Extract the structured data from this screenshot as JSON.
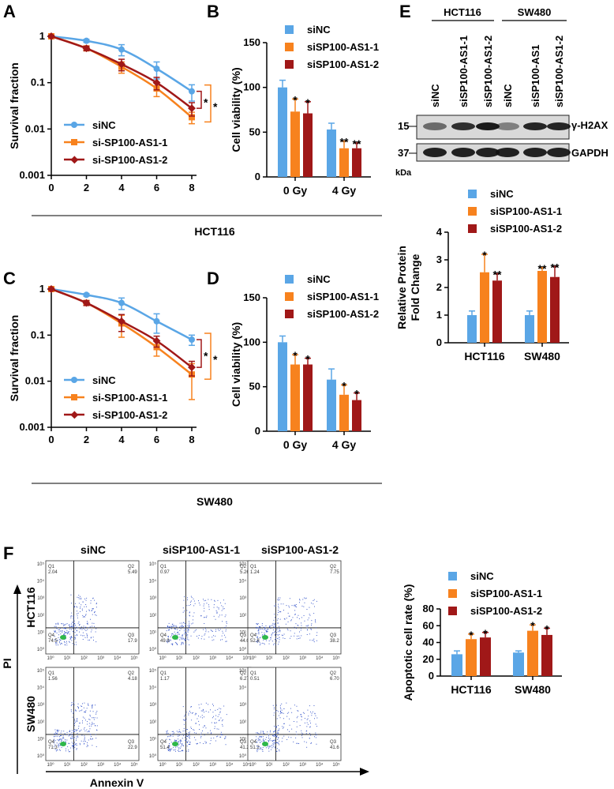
{
  "panel_letters": [
    "A",
    "B",
    "C",
    "D",
    "E",
    "F"
  ],
  "group_captions": {
    "A_B": "HCT116",
    "C_D": "SW480"
  },
  "colors": {
    "siNC": "#5aa6e6",
    "si1": "#f7821e",
    "si2": "#a01818"
  },
  "chart_data": [
    {
      "panel": "A",
      "type": "line",
      "title": "",
      "ylabel": "Survival fraction",
      "xlabel": "",
      "x": [
        0,
        2,
        4,
        6,
        8
      ],
      "xticks": [
        "0",
        "2",
        "4",
        "6",
        "8"
      ],
      "yticks": [
        "1",
        "0.1",
        "0.01",
        "0.001"
      ],
      "ylim": [
        0.001,
        1
      ],
      "yscale": "log",
      "series": [
        {
          "name": "siNC",
          "values": [
            1,
            0.8,
            0.52,
            0.2,
            0.065
          ],
          "err": [
            0.05,
            0.06,
            0.14,
            0.08,
            0.025
          ]
        },
        {
          "name": "si-SP100-AS1-1",
          "values": [
            1,
            0.55,
            0.22,
            0.075,
            0.018
          ],
          "err": [
            0.05,
            0.06,
            0.06,
            0.025,
            0.005
          ]
        },
        {
          "name": "si-SP100-AS1-2",
          "values": [
            1,
            0.55,
            0.25,
            0.1,
            0.028
          ],
          "err": [
            0.05,
            0.06,
            0.07,
            0.03,
            0.009
          ]
        }
      ],
      "sig": [
        "*",
        "*"
      ]
    },
    {
      "panel": "B",
      "type": "bar",
      "ylabel": "Cell viability (%)",
      "categories": [
        "0 Gy",
        "4 Gy"
      ],
      "yticks": [
        "0",
        "50",
        "100",
        "150"
      ],
      "ylim": [
        0,
        150
      ],
      "series": [
        {
          "name": "siNC",
          "values": [
            100,
            53
          ],
          "err": [
            8,
            7
          ],
          "sig": [
            "",
            ""
          ]
        },
        {
          "name": "siSP100-AS1-1",
          "values": [
            73,
            32
          ],
          "err": [
            14,
            8
          ],
          "sig": [
            "*",
            "**"
          ]
        },
        {
          "name": "siSP100-AS1-2",
          "values": [
            71,
            32
          ],
          "err": [
            13,
            6
          ],
          "sig": [
            "*",
            "**"
          ]
        }
      ]
    },
    {
      "panel": "C",
      "type": "line",
      "ylabel": "Survival fraction",
      "x": [
        0,
        2,
        4,
        6,
        8
      ],
      "xticks": [
        "0",
        "2",
        "4",
        "6",
        "8"
      ],
      "yticks": [
        "1",
        "0.1",
        "0.01",
        "0.001"
      ],
      "ylim": [
        0.001,
        1
      ],
      "yscale": "log",
      "series": [
        {
          "name": "siNC",
          "values": [
            1,
            0.75,
            0.5,
            0.2,
            0.08
          ],
          "err": [
            0.05,
            0.05,
            0.14,
            0.09,
            0.02
          ]
        },
        {
          "name": "si-SP100-AS1-1",
          "values": [
            1,
            0.5,
            0.18,
            0.055,
            0.014
          ],
          "err": [
            0.05,
            0.06,
            0.09,
            0.02,
            0.01
          ]
        },
        {
          "name": "si-SP100-AS1-2",
          "values": [
            1,
            0.5,
            0.2,
            0.075,
            0.02
          ],
          "err": [
            0.05,
            0.06,
            0.08,
            0.02,
            0.007
          ]
        }
      ],
      "sig": [
        "*",
        "*"
      ]
    },
    {
      "panel": "D",
      "type": "bar",
      "ylabel": "Cell viability (%)",
      "categories": [
        "0 Gy",
        "4 Gy"
      ],
      "yticks": [
        "0",
        "50",
        "100",
        "150"
      ],
      "ylim": [
        0,
        150
      ],
      "series": [
        {
          "name": "siNC",
          "values": [
            100,
            58
          ],
          "err": [
            7,
            12
          ],
          "sig": [
            "",
            ""
          ]
        },
        {
          "name": "siSP100-AS1-1",
          "values": [
            75,
            41
          ],
          "err": [
            11,
            11
          ],
          "sig": [
            "*",
            "*"
          ]
        },
        {
          "name": "siSP100-AS1-2",
          "values": [
            75,
            35
          ],
          "err": [
            7,
            8
          ],
          "sig": [
            "*",
            "*"
          ]
        }
      ]
    },
    {
      "panel": "E",
      "type": "bar",
      "ylabel": "Relative Protein Fold Change",
      "categories": [
        "HCT116",
        "SW480"
      ],
      "yticks": [
        "0",
        "1",
        "2",
        "3",
        "4"
      ],
      "ylim": [
        0,
        4
      ],
      "series": [
        {
          "name": "siNC",
          "values": [
            1.0,
            1.0
          ],
          "err": [
            0.15,
            0.15
          ],
          "sig": [
            "",
            ""
          ]
        },
        {
          "name": "siSP100-AS1-1",
          "values": [
            2.55,
            2.6
          ],
          "err": [
            0.65,
            0.12
          ],
          "sig": [
            "*",
            "**"
          ]
        },
        {
          "name": "siSP100-AS1-2",
          "values": [
            2.25,
            2.38
          ],
          "err": [
            0.25,
            0.38
          ],
          "sig": [
            "**",
            "**"
          ]
        }
      ]
    },
    {
      "panel": "F",
      "type": "bar",
      "ylabel": "Apoptotic cell rate (%)",
      "categories": [
        "HCT116",
        "SW480"
      ],
      "yticks": [
        "0",
        "20",
        "40",
        "60",
        "80"
      ],
      "ylim": [
        0,
        80
      ],
      "series": [
        {
          "name": "siNC",
          "values": [
            26,
            28
          ],
          "err": [
            4,
            2
          ],
          "sig": [
            "",
            ""
          ]
        },
        {
          "name": "siSP100-AS1-1",
          "values": [
            44,
            54
          ],
          "err": [
            6,
            7
          ],
          "sig": [
            "*",
            "*"
          ]
        },
        {
          "name": "siSP100-AS1-2",
          "values": [
            46,
            49
          ],
          "err": [
            6,
            8
          ],
          "sig": [
            "*",
            "*"
          ]
        }
      ]
    }
  ],
  "western": {
    "cell_lines": [
      "HCT116",
      "SW480"
    ],
    "lanes": [
      "siNC",
      "siSP100-AS1-1",
      "siSP100-AS1-2",
      "siNC",
      "siSP100-AS1",
      "siSP100-AS1-2"
    ],
    "bands": [
      {
        "name": "γ-H2AX",
        "mw": "15"
      },
      {
        "name": "GAPDH",
        "mw": "37"
      }
    ],
    "unit": "kDa"
  },
  "flow": {
    "columns": [
      "siNC",
      "siSP100-AS1-1",
      "siSP100-AS1-2"
    ],
    "rows": [
      "HCT116",
      "SW480"
    ],
    "ylabel": "PI",
    "xlabel": "Annexin V",
    "quadrants": [
      [
        [
          "2.04",
          "5.49",
          "17.9",
          "74.5"
        ],
        [
          "0.97",
          "5.26",
          "44.0",
          "49.9"
        ],
        [
          "1.24",
          "7.75",
          "38.2",
          "52.8"
        ]
      ],
      [
        [
          "1.56",
          "4.18",
          "22.9",
          "71.3"
        ],
        [
          "1.17",
          "6.27",
          "41.2",
          "51.4"
        ],
        [
          "0.51",
          "6.70",
          "41.6",
          "51.2"
        ]
      ]
    ],
    "q_labels": [
      "Q1",
      "Q2",
      "Q3",
      "Q4"
    ],
    "axis_ticks": [
      "10⁰",
      "10¹",
      "10²",
      "10³",
      "10⁴",
      "10⁵"
    ]
  }
}
